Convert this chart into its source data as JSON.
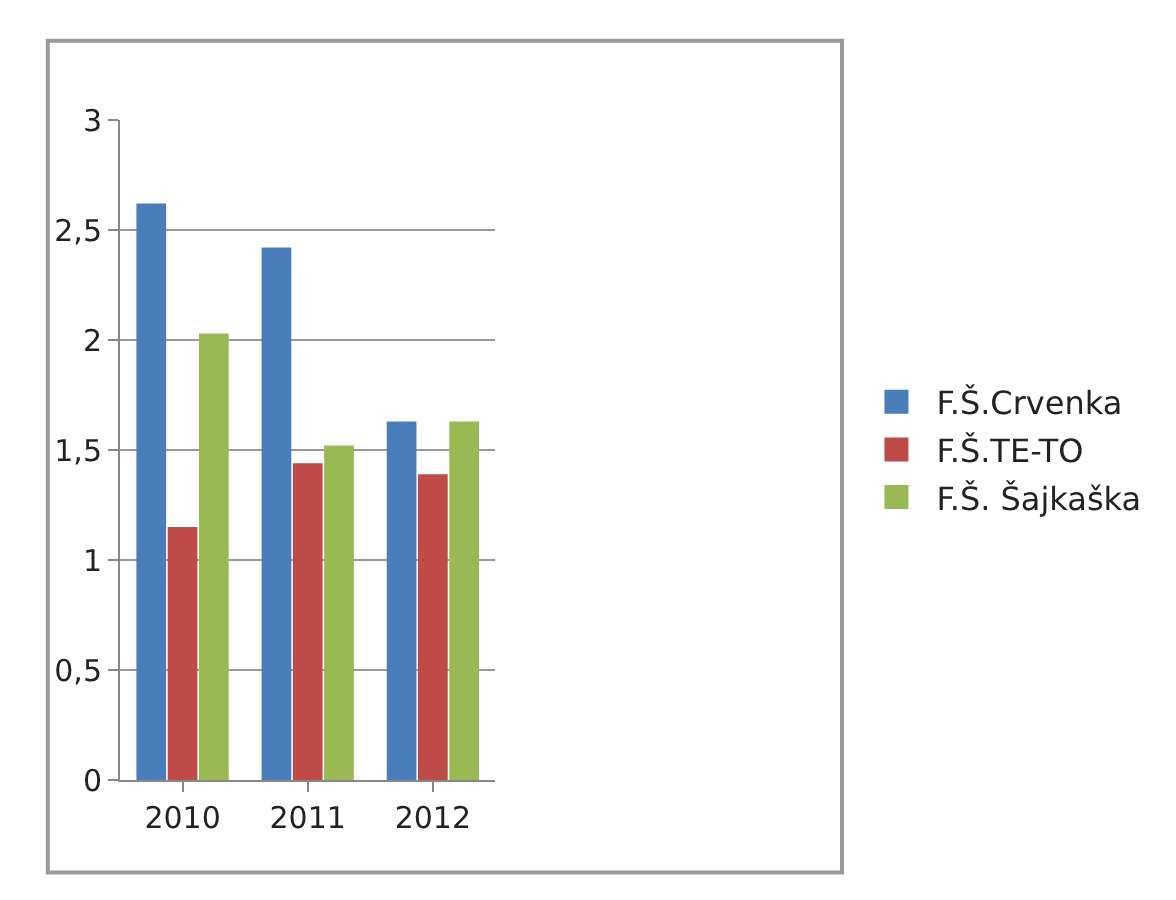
{
  "chart_data": {
    "type": "bar",
    "categories": [
      "2010",
      "2011",
      "2012"
    ],
    "series": [
      {
        "name": "F.Š.Crvenka",
        "color": "#4a7ebb",
        "values": [
          2.62,
          2.42,
          1.63
        ]
      },
      {
        "name": "F.Š.TE-TO",
        "color": "#be4b48",
        "values": [
          1.15,
          1.44,
          1.39
        ]
      },
      {
        "name": "F.Š. Šajkaška",
        "color": "#98b954",
        "values": [
          2.03,
          1.52,
          1.63
        ]
      }
    ],
    "ylim": [
      0,
      3
    ],
    "yticks": [
      0,
      {
        "value": 0.5,
        "label": "0,5"
      },
      1,
      {
        "value": 1.5,
        "label": "1,5"
      },
      2,
      {
        "value": 2.5,
        "label": "2,5"
      },
      3
    ],
    "grid": "y",
    "legend": "right"
  }
}
